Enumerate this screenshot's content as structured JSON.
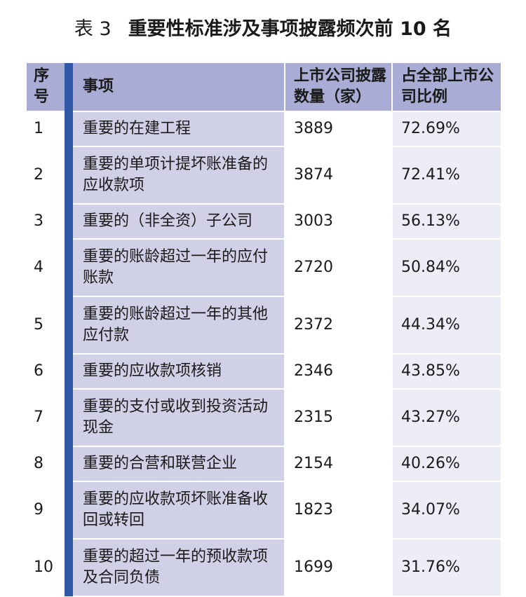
{
  "title": {
    "label": "表 3",
    "text": "重要性标准涉及事项披露频次前 10 名"
  },
  "table": {
    "headers": {
      "index": "序号",
      "item": "事项",
      "count": "上市公司披露数量（家）",
      "ratio": "占全部上市公司比例"
    },
    "rows": [
      {
        "index": "1",
        "item": "重要的在建工程",
        "count": "3889",
        "ratio": "72.69%"
      },
      {
        "index": "2",
        "item": "重要的单项计提坏账准备的应收款项",
        "count": "3874",
        "ratio": "72.41%"
      },
      {
        "index": "3",
        "item": "重要的（非全资）子公司",
        "count": "3003",
        "ratio": "56.13%"
      },
      {
        "index": "4",
        "item": "重要的账龄超过一年的应付账款",
        "count": "2720",
        "ratio": "50.84%"
      },
      {
        "index": "5",
        "item": "重要的账龄超过一年的其他应付款",
        "count": "2372",
        "ratio": "44.34%"
      },
      {
        "index": "6",
        "item": "重要的应收款项核销",
        "count": "2346",
        "ratio": "43.85%"
      },
      {
        "index": "7",
        "item": "重要的支付或收到投资活动现金",
        "count": "2315",
        "ratio": "43.27%"
      },
      {
        "index": "8",
        "item": "重要的合营和联营企业",
        "count": "2154",
        "ratio": "40.26%"
      },
      {
        "index": "9",
        "item": "重要的应收款项坏账准备收回或转回",
        "count": "1823",
        "ratio": "34.07%"
      },
      {
        "index": "10",
        "item": "重要的超过一年的预收款项及合同负债",
        "count": "1699",
        "ratio": "31.76%"
      }
    ]
  },
  "colors": {
    "header_bg": "#a9acd4",
    "accent_bar": "#2f59a7",
    "item_col_bg": "#d0d1e6",
    "ratio_col_bg": "#ecedf7"
  }
}
